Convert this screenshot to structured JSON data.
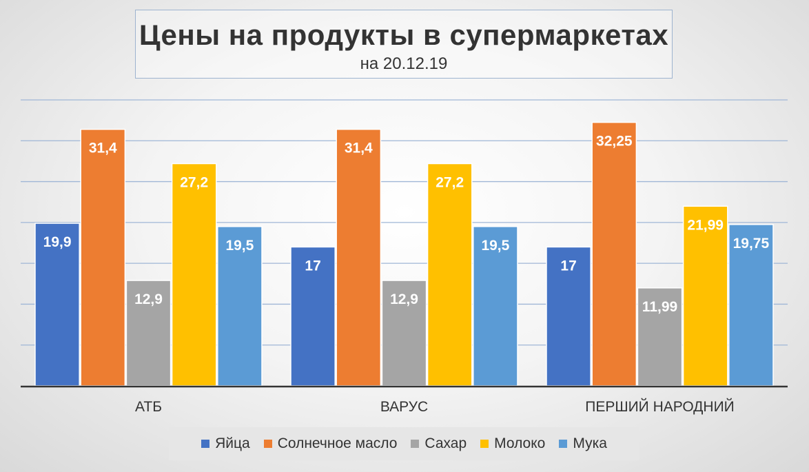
{
  "chart_data": {
    "type": "bar",
    "title": "Цены на продукты в супермаркетах",
    "subtitle": "на 20.12.19",
    "categories": [
      "АТБ",
      "ВАРУС",
      "ПЕРШИЙ НАРОДНИЙ"
    ],
    "series": [
      {
        "name": "Яйца",
        "color": "#4472c4",
        "values": [
          19.9,
          17,
          17
        ],
        "labels": [
          "19,9",
          "17",
          "17"
        ]
      },
      {
        "name": "Солнечное масло",
        "color": "#ed7d31",
        "values": [
          31.4,
          31.4,
          32.25
        ],
        "labels": [
          "31,4",
          "31,4",
          "32,25"
        ]
      },
      {
        "name": "Сахар",
        "color": "#a5a5a5",
        "values": [
          12.9,
          12.9,
          11.99
        ],
        "labels": [
          "12,9",
          "12,9",
          "11,99"
        ]
      },
      {
        "name": "Молоко",
        "color": "#ffc000",
        "values": [
          27.2,
          27.2,
          21.99
        ],
        "labels": [
          "27,2",
          "27,2",
          "21,99"
        ]
      },
      {
        "name": "Мука",
        "color": "#5b9bd5",
        "values": [
          19.5,
          19.5,
          19.75
        ],
        "labels": [
          "19,5",
          "19,5",
          "19,75"
        ]
      }
    ],
    "ylim": [
      0,
      35
    ],
    "grid": true,
    "legend_position": "bottom",
    "xlabel": "",
    "ylabel": ""
  }
}
